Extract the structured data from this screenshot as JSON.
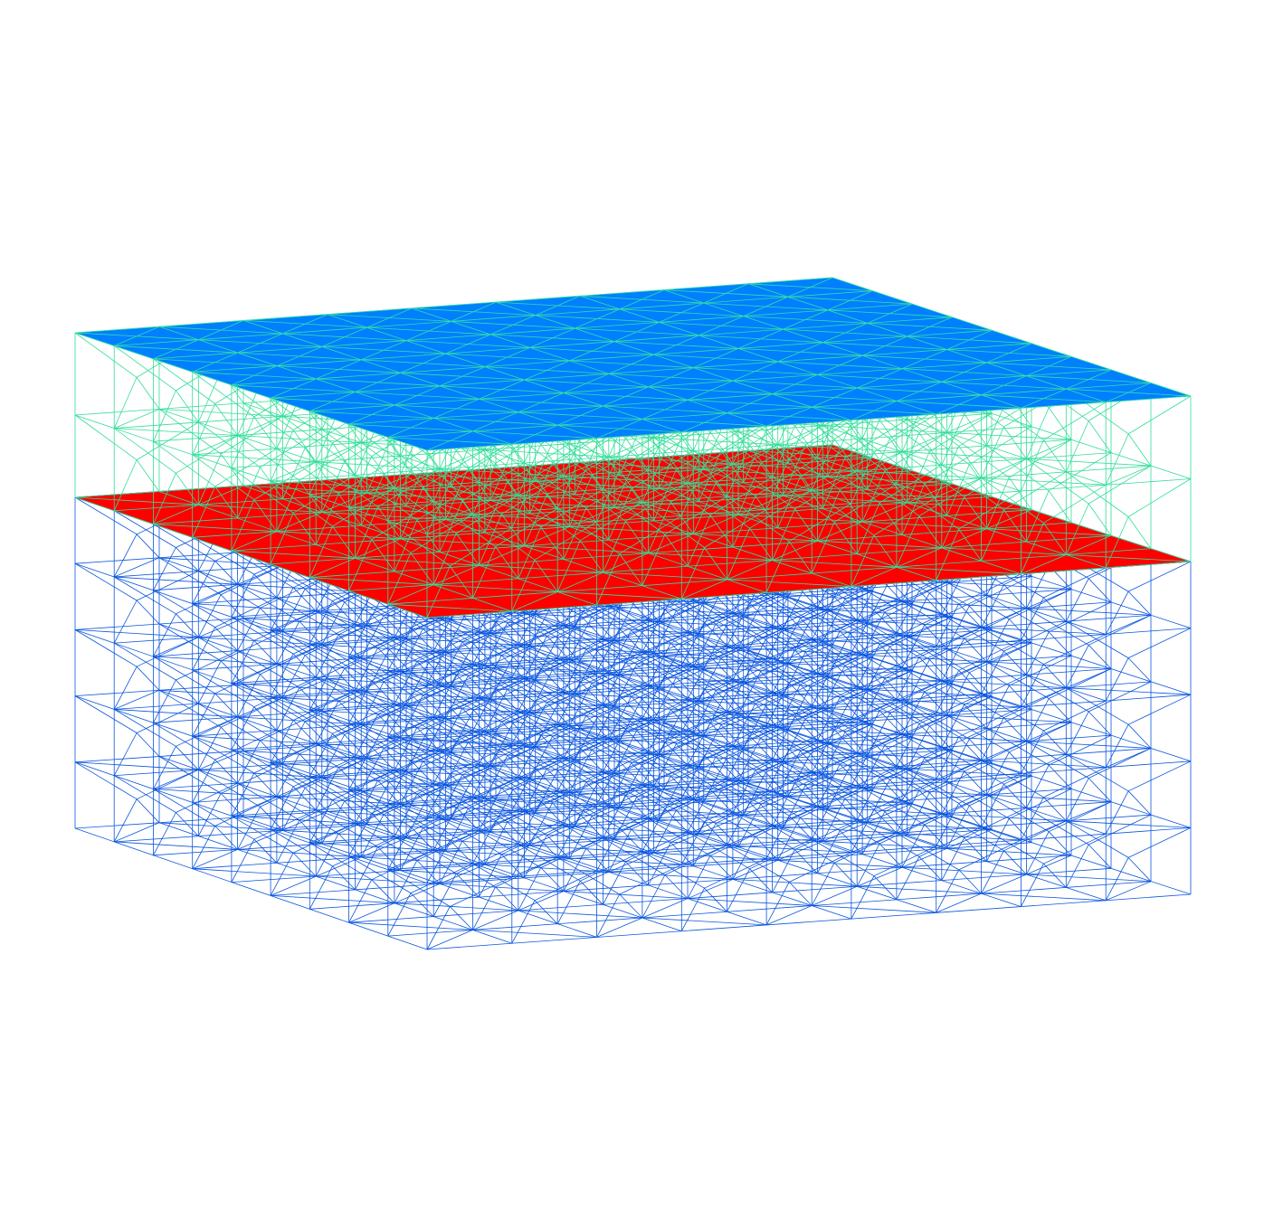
{
  "diagram": {
    "kind": "layered 3D tetrahedral mesh, wireframe",
    "grid": {
      "divisions_x": 9,
      "divisions_y": 9,
      "upper_layer_levels": 2,
      "lower_layer_levels": 5
    },
    "colors": {
      "background": "#ffffff",
      "top_surface_fill": "#0080ff",
      "top_surface_edges": "#33ddaa",
      "upper_layer_edges": "#33dd99",
      "interface_fill": "#ff0000",
      "interface_edges": "#7a3a3a",
      "lower_layer_edges": "#0a55dd"
    },
    "layers": [
      {
        "id": "upper-layer",
        "color_key": "upper_layer_edges"
      },
      {
        "id": "lower-layer",
        "color_key": "lower_layer_edges"
      }
    ],
    "surfaces": [
      {
        "id": "top-surface",
        "fill_key": "top_surface_fill",
        "edge_key": "top_surface_edges"
      },
      {
        "id": "interface-surface",
        "fill_key": "interface_fill",
        "edge_key": "interface_edges"
      }
    ]
  }
}
